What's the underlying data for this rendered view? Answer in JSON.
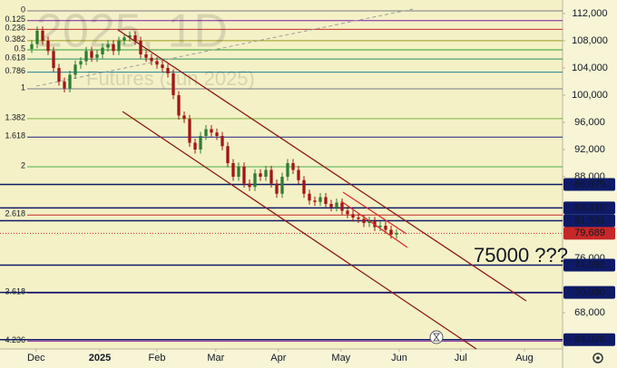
{
  "chart_data": {
    "type": "candlestick",
    "watermark": [
      "2025, 1D",
      "Futures (Jun 2025)"
    ],
    "annotation": "75000 ???",
    "xlim": [
      -5.833,
      97.5
    ],
    "xticks": [
      {
        "value": 0.8,
        "label": "Dec"
      },
      {
        "value": 12.5,
        "label": "2025"
      },
      {
        "value": 23,
        "label": "Feb"
      },
      {
        "value": 33.8,
        "label": "Mar"
      },
      {
        "value": 45.3,
        "label": "Apr"
      },
      {
        "value": 56.8,
        "label": "May"
      },
      {
        "value": 67.5,
        "label": "Jun"
      },
      {
        "value": 78.8,
        "label": "Jul"
      },
      {
        "value": 90.5,
        "label": "Aug"
      }
    ],
    "ylim": [
      62667,
      114000
    ],
    "yticks": [
      {
        "value": 112000,
        "label": "112,000"
      },
      {
        "value": 108000,
        "label": "108,000"
      },
      {
        "value": 104000,
        "label": "104,000"
      },
      {
        "value": 100000,
        "label": "100,000"
      },
      {
        "value": 96000,
        "label": "96,000"
      },
      {
        "value": 92000,
        "label": "92,000"
      },
      {
        "value": 88000,
        "label": "88,000"
      },
      {
        "value": 76000,
        "label": "76,000"
      },
      {
        "value": 68000,
        "label": "68,000"
      }
    ],
    "up_color": "#2e7d32",
    "down_color": "#a31515",
    "open": [
      106800,
      107500,
      109500,
      108000,
      106500,
      104000,
      102000,
      101000,
      103000,
      104500,
      105000,
      106500,
      105500,
      106000,
      107000,
      107500,
      106500,
      108000,
      108500,
      108800,
      108000,
      106000,
      105500,
      105000,
      104500,
      104000,
      103200,
      100000,
      97000,
      96500,
      93000,
      92000,
      94000,
      95000,
      94500,
      94000,
      92500,
      90000,
      88000,
      89500,
      87000,
      86500,
      88500,
      88000,
      89000,
      87000,
      85500,
      88000,
      90000,
      89000,
      87500,
      85500,
      84500,
      84300,
      85000,
      84000,
      83500,
      84200,
      83000,
      82500,
      82000,
      81800,
      81200,
      81500,
      80600,
      80800,
      80200,
      79500
    ],
    "high": [
      108100,
      110100,
      110100,
      108600,
      107100,
      104600,
      102600,
      103600,
      105100,
      105600,
      107100,
      107100,
      106600,
      107600,
      108100,
      108100,
      108600,
      109100,
      109400,
      109400,
      108600,
      106600,
      106100,
      105600,
      105100,
      104600,
      103800,
      100600,
      97600,
      97100,
      93600,
      94600,
      95600,
      95600,
      95100,
      94600,
      93100,
      90600,
      90100,
      90100,
      87600,
      89100,
      89100,
      89600,
      89600,
      87600,
      88600,
      90600,
      90600,
      89600,
      88100,
      86100,
      85100,
      85600,
      85600,
      84600,
      84800,
      84800,
      83600,
      83100,
      82600,
      82400,
      82100,
      82100,
      81400,
      81400,
      80800,
      80289
    ],
    "low": [
      106200,
      106900,
      107400,
      105900,
      103400,
      101400,
      100400,
      100400,
      102400,
      103900,
      104400,
      104900,
      104900,
      105400,
      106400,
      105900,
      105900,
      107400,
      107900,
      107400,
      105400,
      104900,
      104400,
      103900,
      103400,
      102600,
      99400,
      96400,
      95900,
      92400,
      91400,
      91400,
      93400,
      93900,
      93400,
      91900,
      89400,
      87400,
      87400,
      86400,
      85900,
      85900,
      87400,
      87400,
      86400,
      84900,
      84900,
      87400,
      88400,
      86900,
      84900,
      83900,
      83700,
      83700,
      83400,
      82900,
      82900,
      82400,
      81900,
      81400,
      81200,
      80600,
      80600,
      80000,
      80000,
      79600,
      78900,
      78900
    ],
    "close": [
      107500,
      109500,
      108000,
      106500,
      104000,
      102000,
      101000,
      103000,
      104500,
      105000,
      106500,
      105500,
      106000,
      107000,
      107500,
      106500,
      108000,
      108500,
      108800,
      108000,
      106000,
      105500,
      105000,
      104500,
      104000,
      103200,
      100000,
      97000,
      96500,
      93000,
      92000,
      94000,
      95000,
      94500,
      94000,
      92500,
      90000,
      88000,
      89500,
      87000,
      86500,
      88500,
      88000,
      89000,
      87000,
      85500,
      88000,
      90000,
      89000,
      87500,
      85500,
      84500,
      84300,
      85000,
      84000,
      83500,
      84200,
      83000,
      82500,
      82000,
      81800,
      81200,
      81500,
      80600,
      80800,
      80200,
      79500,
      79689
    ],
    "fib_levels": [
      {
        "ratio": 0,
        "value": 112400,
        "color": "#787b86"
      },
      {
        "ratio": 0.125,
        "value": 110970,
        "color": "#7b1fa2"
      },
      {
        "ratio": 0.236,
        "value": 109690,
        "color": "#c62828"
      },
      {
        "ratio": 0.382,
        "value": 108020,
        "color": "#9c9c1c"
      },
      {
        "ratio": 0.5,
        "value": 106670,
        "color": "#2e9b2e"
      },
      {
        "ratio": 0.618,
        "value": 105310,
        "color": "#2a8f5c"
      },
      {
        "ratio": 0.786,
        "value": 103390,
        "color": "#1e7f99"
      },
      {
        "ratio": 1,
        "value": 100930,
        "color": "#787b86"
      },
      {
        "ratio": 1.382,
        "value": 96550,
        "color": "#7cb342"
      },
      {
        "ratio": 1.618,
        "value": 93840,
        "color": "#1a237e"
      },
      {
        "ratio": 2,
        "value": 89460,
        "color": "#4caf50"
      },
      {
        "ratio": 2.618,
        "value": 82370,
        "color": "#c62828"
      },
      {
        "ratio": 3.618,
        "value": 70900,
        "color": "#6a1b9a"
      },
      {
        "ratio": 4.236,
        "value": 63810,
        "color": "#8e24aa"
      }
    ],
    "hlines": [
      {
        "value": 86875,
        "label": "86,875"
      },
      {
        "value": 83419,
        "label": "83,419"
      },
      {
        "value": 81531,
        "label": "81,531"
      },
      {
        "value": 74992,
        "label": "74,992"
      },
      {
        "value": 70980,
        "label": "70,980"
      },
      {
        "value": 64026,
        "label": "64,026"
      }
    ],
    "hline_color": "#0e1a66",
    "last_price": {
      "value": 79689,
      "label": "79,689"
    },
    "last_price_color": "#c62828"
  }
}
